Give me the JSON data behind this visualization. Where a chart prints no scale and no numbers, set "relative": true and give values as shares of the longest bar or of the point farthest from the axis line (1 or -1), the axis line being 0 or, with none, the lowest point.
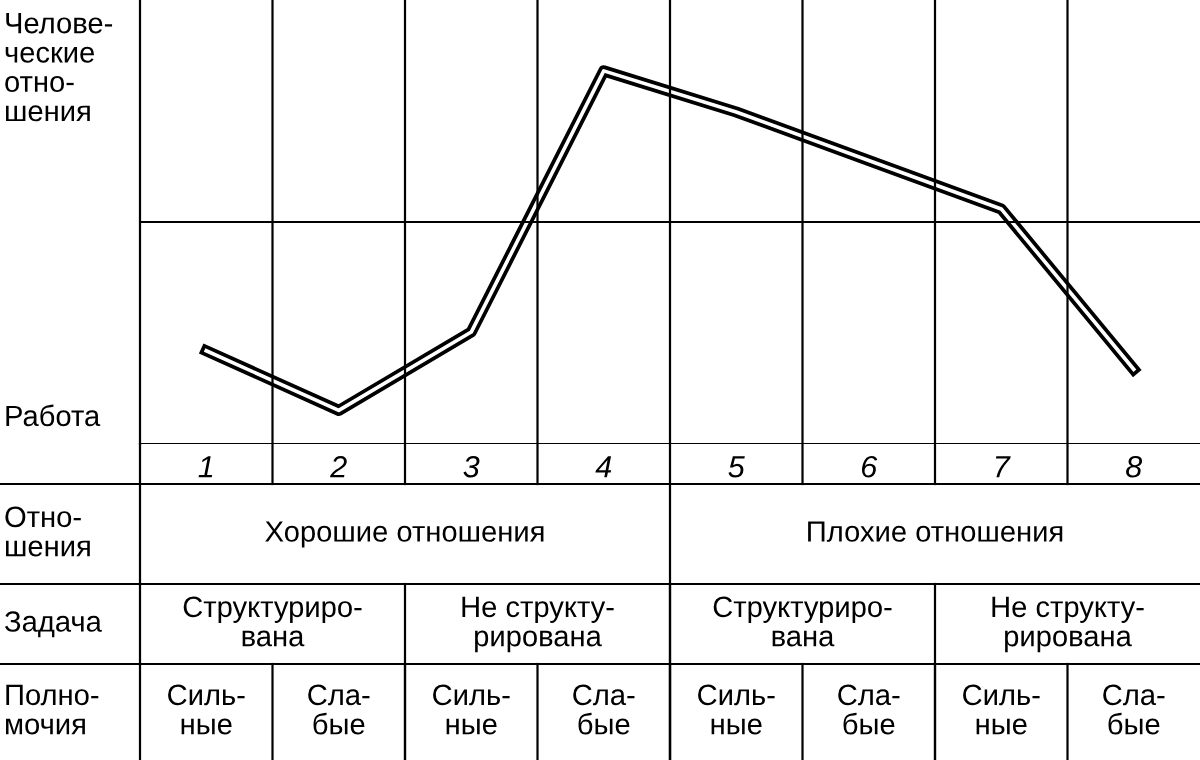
{
  "chart_data": {
    "type": "line",
    "relative": true,
    "grid": true,
    "line_style": "solid",
    "color": "#000000",
    "ylabel": "Челове-\nческие\nотно-\nшения",
    "categories": [
      "1",
      "2",
      "3",
      "4",
      "5",
      "6",
      "7",
      "8"
    ],
    "values": [
      0.25,
      0.09,
      0.3,
      1.0,
      0.89,
      0.76,
      0.63,
      0.2
    ],
    "annotations": [
      "Работа",
      "Отно-\nшения",
      "Хорошие отношения",
      "Плохие отношения",
      "Задача",
      "Структуриро-\nвана",
      "Не структу-\nрирована",
      "Структуриро-\nвана",
      "Не структу-\nрирована",
      "Полно-\nмочия",
      "Силь-\nные",
      "Сла-\nбые",
      "Силь-\nные",
      "Сла-\nбые",
      "Силь-\nные",
      "Сла-\nбые",
      "Силь-\nные",
      "Сла-\nбые"
    ]
  }
}
